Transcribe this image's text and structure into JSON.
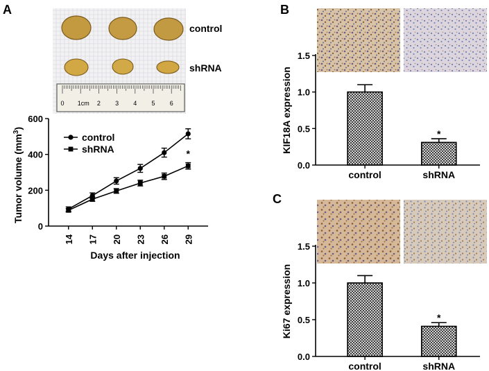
{
  "panels": {
    "a": "A",
    "b": "B",
    "c": "C"
  },
  "photo": {
    "labels": [
      "control",
      "shRNA"
    ],
    "ruler_numbers": [
      "0",
      "1cm",
      "2",
      "3",
      "4",
      "5",
      "6"
    ]
  },
  "chart_data": [
    {
      "type": "line",
      "x": [
        14,
        17,
        20,
        23,
        26,
        29
      ],
      "series": [
        {
          "name": "control",
          "marker": "circle",
          "values": [
            95,
            170,
            252,
            322,
            410,
            515
          ],
          "errors": [
            12,
            15,
            18,
            22,
            25,
            28
          ]
        },
        {
          "name": "shRNA",
          "marker": "square",
          "values": [
            88,
            150,
            196,
            240,
            278,
            336
          ],
          "errors": [
            10,
            12,
            13,
            16,
            18,
            18
          ]
        }
      ],
      "title": "",
      "xlabel": "Days after injection",
      "ylabel": "Tumor volume (mm",
      "ylabel_sup": "3",
      "ylabel_end": ")",
      "ylim": [
        0,
        600
      ],
      "yticks": [
        0,
        200,
        400,
        600
      ],
      "annotation": "*",
      "legend": "top-left"
    },
    {
      "type": "bar",
      "categories": [
        "control",
        "shRNA"
      ],
      "values": [
        1.0,
        0.31
      ],
      "errors": [
        0.1,
        0.05
      ],
      "ylabel": "KIF18A expression",
      "ylim": [
        0,
        1.5
      ],
      "yticks": [
        "0.0",
        "0.5",
        "1.0",
        "1.5"
      ],
      "annotation": "*"
    },
    {
      "type": "bar",
      "categories": [
        "control",
        "shRNA"
      ],
      "values": [
        1.0,
        0.41
      ],
      "errors": [
        0.1,
        0.05
      ],
      "ylabel": "Ki67 expression",
      "ylim": [
        0,
        1.5
      ],
      "yticks": [
        "0.0",
        "0.5",
        "1.0",
        "1.5"
      ],
      "annotation": "*"
    }
  ]
}
